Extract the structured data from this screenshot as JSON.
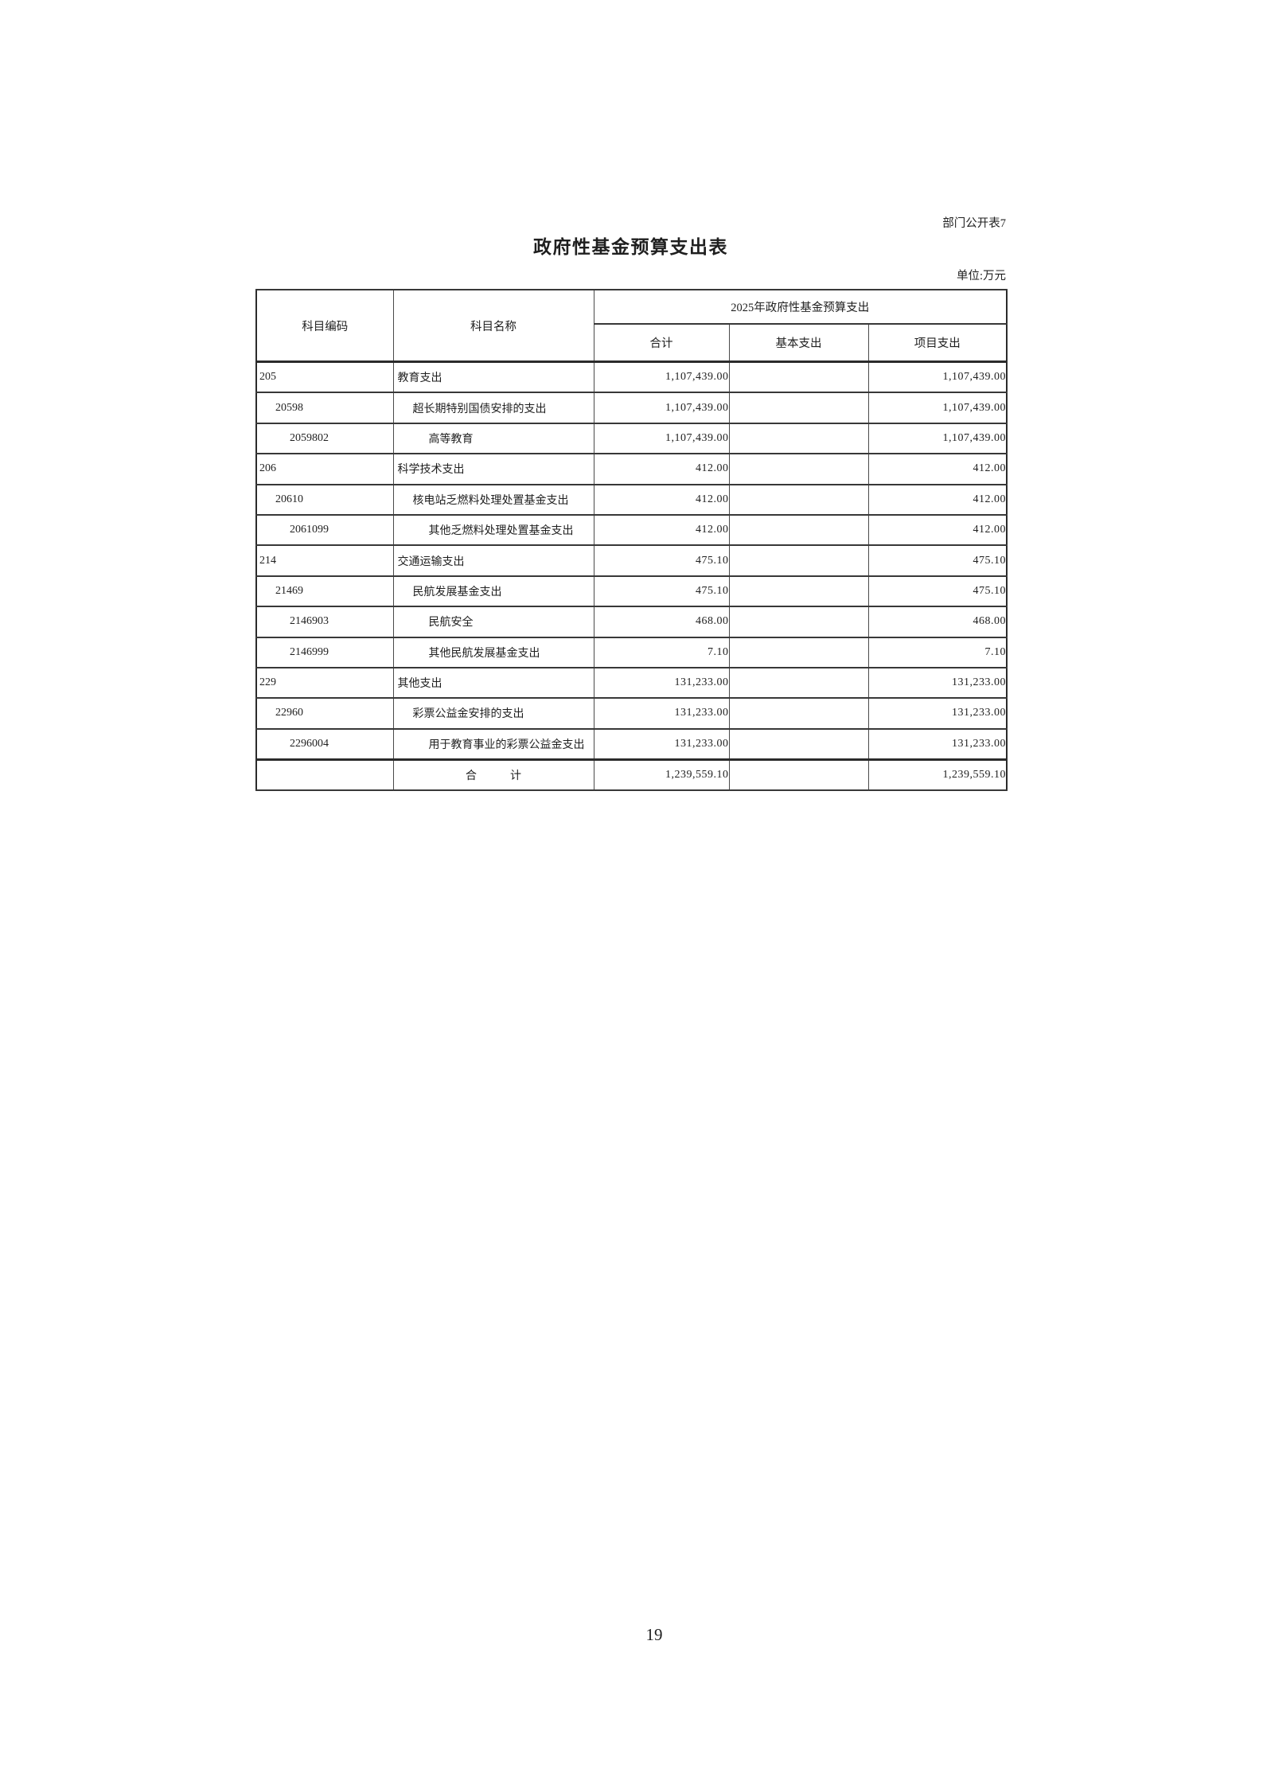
{
  "page": {
    "doc_label": "部门公开表7",
    "title": "政府性基金预算支出表",
    "unit_note": "单位:万元",
    "page_number": "19"
  },
  "colors": {
    "text": "#1f1f1f",
    "border_heavy": "#2b2b2b",
    "border_mid": "#383838",
    "border_thin": "#4a4a4a",
    "paper": "#ffffff"
  },
  "table": {
    "header": {
      "col_code": "科目编码",
      "col_name": "科目名称",
      "group": "2025年政府性基金预算支出",
      "sub_total": "合计",
      "sub_basic": "基本支出",
      "sub_project": "项目支出"
    },
    "rows": [
      {
        "code": "205",
        "name": "教育支出",
        "level": "1",
        "total": "1,107,439.00",
        "basic": "",
        "project": "1,107,439.00"
      },
      {
        "code": "20598",
        "name": "超长期特别国债安排的支出",
        "level": "2",
        "total": "1,107,439.00",
        "basic": "",
        "project": "1,107,439.00"
      },
      {
        "code": "2059802",
        "name": "高等教育",
        "level": "3",
        "total": "1,107,439.00",
        "basic": "",
        "project": "1,107,439.00"
      },
      {
        "code": "206",
        "name": "科学技术支出",
        "level": "1",
        "total": "412.00",
        "basic": "",
        "project": "412.00"
      },
      {
        "code": "20610",
        "name": "核电站乏燃料处理处置基金支出",
        "level": "2",
        "total": "412.00",
        "basic": "",
        "project": "412.00"
      },
      {
        "code": "2061099",
        "name": "其他乏燃料处理处置基金支出",
        "level": "3",
        "total": "412.00",
        "basic": "",
        "project": "412.00"
      },
      {
        "code": "214",
        "name": "交通运输支出",
        "level": "1",
        "total": "475.10",
        "basic": "",
        "project": "475.10"
      },
      {
        "code": "21469",
        "name": "民航发展基金支出",
        "level": "2",
        "total": "475.10",
        "basic": "",
        "project": "475.10"
      },
      {
        "code": "2146903",
        "name": "民航安全",
        "level": "3",
        "total": "468.00",
        "basic": "",
        "project": "468.00"
      },
      {
        "code": "2146999",
        "name": "其他民航发展基金支出",
        "level": "3",
        "total": "7.10",
        "basic": "",
        "project": "7.10"
      },
      {
        "code": "229",
        "name": "其他支出",
        "level": "1",
        "total": "131,233.00",
        "basic": "",
        "project": "131,233.00"
      },
      {
        "code": "22960",
        "name": "彩票公益金安排的支出",
        "level": "2",
        "total": "131,233.00",
        "basic": "",
        "project": "131,233.00"
      },
      {
        "code": "2296004",
        "name": "用于教育事业的彩票公益金支出",
        "level": "3",
        "total": "131,233.00",
        "basic": "",
        "project": "131,233.00"
      },
      {
        "code": "",
        "name": "合　　　计",
        "level": "total",
        "total": "1,239,559.10",
        "basic": "",
        "project": "1,239,559.10"
      }
    ]
  }
}
